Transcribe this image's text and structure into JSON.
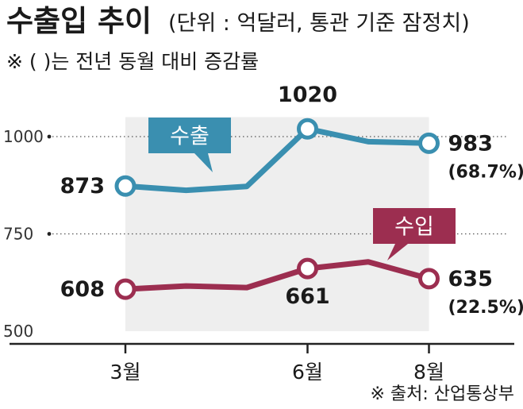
{
  "header": {
    "title": "수출입 추이",
    "unit_note": "(단위 : 억달러, 통관 기준 잠정치)",
    "subtitle": "※ ( )는 전년 동월 대비 증감률"
  },
  "source": "※ 출처: 산업통상부",
  "colors": {
    "export": "#3a8fb0",
    "import": "#9c2e50",
    "plot_bg": "#eeeeee",
    "axis": "#222222"
  },
  "chart_data": {
    "type": "line",
    "ylim": [
      500,
      1100
    ],
    "yticks": [
      500,
      750,
      1000
    ],
    "grid": "dotted horizontal at 750 and 1000",
    "x": [
      3,
      4,
      5,
      6,
      7,
      8
    ],
    "x_tick_labels": [
      {
        "x": 3,
        "label": "3월"
      },
      {
        "x": 6,
        "label": "6월"
      },
      {
        "x": 8,
        "label": "8월"
      }
    ],
    "series": [
      {
        "name": "수출",
        "values": [
          873,
          862,
          872,
          1020,
          987,
          983
        ],
        "labels": [
          {
            "x": 3,
            "text": "873"
          },
          {
            "x": 6,
            "text": "1020"
          },
          {
            "x": 8,
            "text": "983",
            "change": "(68.7%)"
          }
        ]
      },
      {
        "name": "수입",
        "values": [
          608,
          616,
          612,
          661,
          678,
          635
        ],
        "labels": [
          {
            "x": 3,
            "text": "608"
          },
          {
            "x": 6,
            "text": "661"
          },
          {
            "x": 8,
            "text": "635",
            "change": "(22.5%)"
          }
        ]
      }
    ]
  }
}
